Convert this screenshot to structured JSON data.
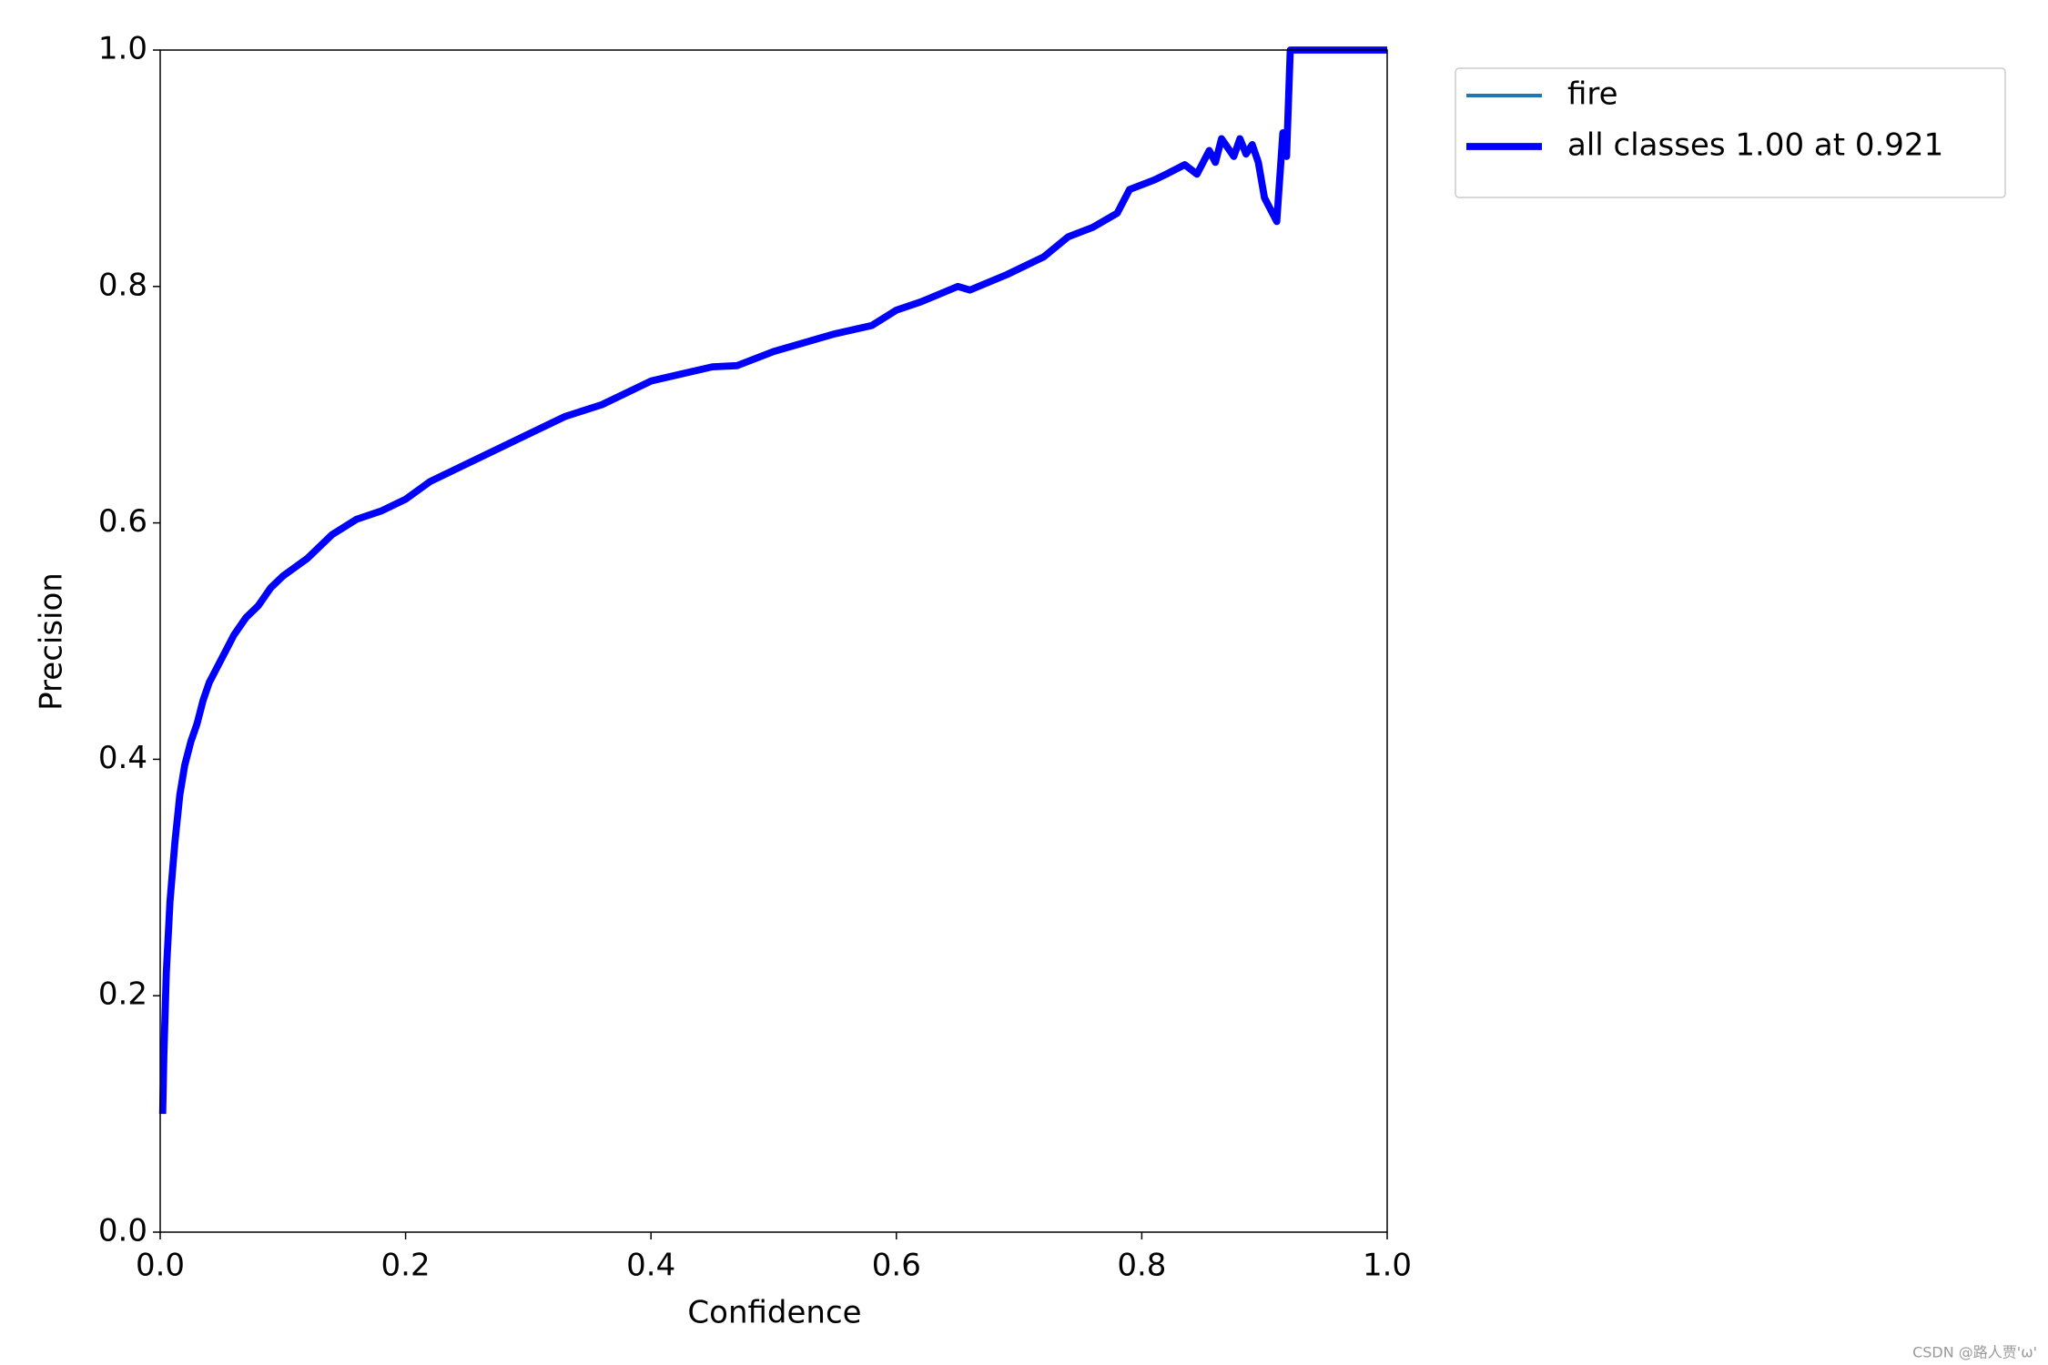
{
  "chart_data": {
    "type": "line",
    "xlabel": "Confidence",
    "ylabel": "Precision",
    "x": [
      0.002,
      0.003,
      0.005,
      0.008,
      0.012,
      0.016,
      0.02,
      0.025,
      0.03,
      0.035,
      0.04,
      0.05,
      0.06,
      0.07,
      0.08,
      0.09,
      0.1,
      0.12,
      0.14,
      0.16,
      0.18,
      0.2,
      0.22,
      0.25,
      0.28,
      0.3,
      0.33,
      0.36,
      0.4,
      0.45,
      0.47,
      0.5,
      0.55,
      0.58,
      0.6,
      0.62,
      0.65,
      0.66,
      0.69,
      0.72,
      0.74,
      0.76,
      0.78,
      0.79,
      0.81,
      0.82,
      0.835,
      0.845,
      0.855,
      0.86,
      0.865,
      0.875,
      0.88,
      0.885,
      0.89,
      0.895,
      0.9,
      0.905,
      0.91,
      0.915,
      0.918,
      0.921,
      0.93,
      1.0
    ],
    "series": [
      {
        "name": "fire",
        "color": "#1f77b4",
        "linewidth": 1.5,
        "values": [
          0.1,
          0.15,
          0.22,
          0.28,
          0.33,
          0.37,
          0.395,
          0.415,
          0.43,
          0.45,
          0.465,
          0.485,
          0.505,
          0.52,
          0.53,
          0.545,
          0.555,
          0.57,
          0.59,
          0.603,
          0.61,
          0.62,
          0.635,
          0.65,
          0.665,
          0.675,
          0.69,
          0.7,
          0.72,
          0.732,
          0.733,
          0.745,
          0.76,
          0.767,
          0.78,
          0.787,
          0.8,
          0.797,
          0.81,
          0.825,
          0.842,
          0.85,
          0.862,
          0.882,
          0.89,
          0.895,
          0.903,
          0.895,
          0.915,
          0.905,
          0.925,
          0.91,
          0.925,
          0.912,
          0.92,
          0.905,
          0.875,
          0.865,
          0.855,
          0.93,
          0.91,
          1.0,
          1.0,
          1.0
        ]
      },
      {
        "name": "all classes 1.00 at 0.921",
        "color": "#0000ff",
        "linewidth": 3,
        "values": [
          0.1,
          0.15,
          0.22,
          0.28,
          0.33,
          0.37,
          0.395,
          0.415,
          0.43,
          0.45,
          0.465,
          0.485,
          0.505,
          0.52,
          0.53,
          0.545,
          0.555,
          0.57,
          0.59,
          0.603,
          0.61,
          0.62,
          0.635,
          0.65,
          0.665,
          0.675,
          0.69,
          0.7,
          0.72,
          0.732,
          0.733,
          0.745,
          0.76,
          0.767,
          0.78,
          0.787,
          0.8,
          0.797,
          0.81,
          0.825,
          0.842,
          0.85,
          0.862,
          0.882,
          0.89,
          0.895,
          0.903,
          0.895,
          0.915,
          0.905,
          0.925,
          0.91,
          0.925,
          0.912,
          0.92,
          0.905,
          0.875,
          0.865,
          0.855,
          0.93,
          0.91,
          1.0,
          1.0,
          1.0
        ]
      }
    ],
    "xlim": [
      0,
      1
    ],
    "ylim": [
      0,
      1
    ],
    "xticks": [
      {
        "value": 0,
        "label": "0.0"
      },
      0.2,
      0.4,
      0.6,
      0.8,
      {
        "value": 1,
        "label": "1.0"
      }
    ],
    "yticks": [
      {
        "value": 0,
        "label": "0.0"
      },
      0.2,
      0.4,
      0.6,
      0.8,
      {
        "value": 1,
        "label": "1.0"
      }
    ],
    "grid": false,
    "legend": "outside upper right",
    "watermark": "CSDN @路人贾'ω'"
  }
}
